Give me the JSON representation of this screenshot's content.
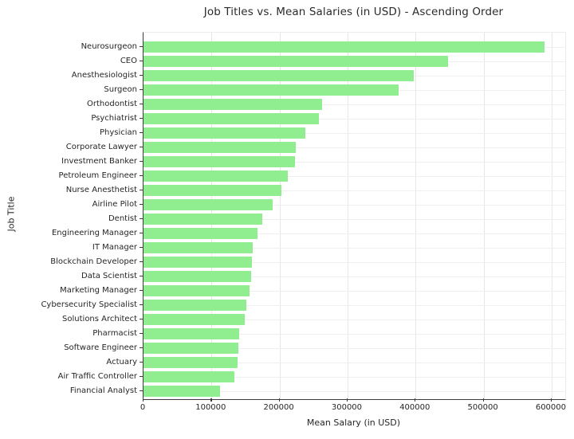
{
  "chart_data": {
    "type": "bar",
    "orientation": "horizontal",
    "title": "Job Titles vs. Mean Salaries (in USD) - Ascending Order",
    "xlabel": "Mean Salary (in USD)",
    "ylabel": "Job Title",
    "categories": [
      "Neurosurgeon",
      "CEO",
      "Anesthesiologist",
      "Surgeon",
      "Orthodontist",
      "Psychiatrist",
      "Physician",
      "Corporate Lawyer",
      "Investment Banker",
      "Petroleum Engineer",
      "Nurse Anesthetist",
      "Airline Pilot",
      "Dentist",
      "Engineering Manager",
      "IT Manager",
      "Blockchain Developer",
      "Data Scientist",
      "Marketing Manager",
      "Cybersecurity Specialist",
      "Solutions Architect",
      "Pharmacist",
      "Software Engineer",
      "Actuary",
      "Air Traffic Controller",
      "Financial Analyst"
    ],
    "values": [
      589000,
      448000,
      397000,
      375000,
      262000,
      258000,
      238000,
      224000,
      223000,
      212000,
      203000,
      190000,
      175000,
      168000,
      160000,
      159000,
      158000,
      156000,
      151000,
      149000,
      140000,
      139000,
      138000,
      133000,
      113000
    ],
    "xticks": [
      0,
      100000,
      200000,
      300000,
      400000,
      500000,
      600000
    ],
    "xlim": [
      0,
      620000
    ],
    "sort_order": "ascending bottom-to-top",
    "bar_color": "#90EE90",
    "grid": true,
    "grid_color": "#e7e7e7",
    "background": "#ffffff",
    "legend": null
  }
}
